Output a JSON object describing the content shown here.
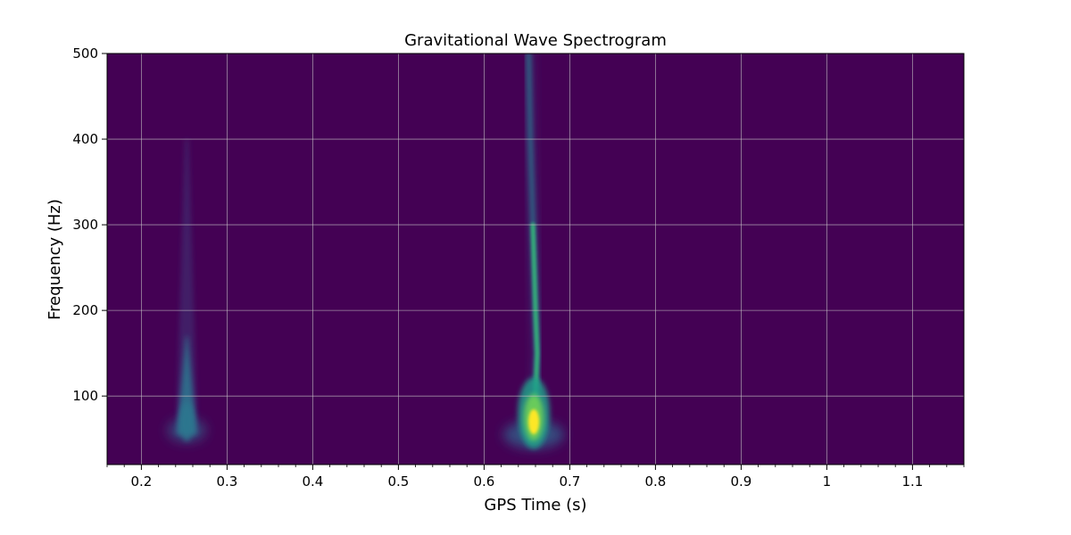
{
  "chart_data": {
    "type": "heatmap",
    "title": "Gravitational Wave Spectrogram",
    "xlabel": "GPS Time (s)",
    "ylabel": "Frequency (Hz)",
    "xlim": [
      0.16,
      1.16
    ],
    "ylim": [
      20,
      500
    ],
    "xticks": [
      0.2,
      0.3,
      0.4,
      0.5,
      0.6,
      0.7,
      0.8,
      0.9,
      1.0,
      1.1
    ],
    "xtick_labels": [
      "0.2",
      "0.3",
      "0.4",
      "0.5",
      "0.6",
      "0.7",
      "0.8",
      "0.9",
      "1",
      "1.1"
    ],
    "yticks": [
      100,
      200,
      300,
      400,
      500
    ],
    "ytick_labels": [
      "100",
      "200",
      "300",
      "400",
      "500"
    ],
    "grid": true,
    "colormap": "viridis",
    "background_color": "#440154",
    "features": [
      {
        "name": "chirp",
        "peak_time": 0.658,
        "peak_freq": 70,
        "peak_intensity": 1.0,
        "track": [
          [
            0.652,
            500
          ],
          [
            0.654,
            400
          ],
          [
            0.657,
            300
          ],
          [
            0.66,
            200
          ],
          [
            0.662,
            150
          ],
          [
            0.66,
            100
          ],
          [
            0.658,
            70
          ],
          [
            0.655,
            50
          ]
        ]
      },
      {
        "name": "glitch",
        "peak_time": 0.253,
        "peak_freq": 70,
        "peak_intensity": 0.35,
        "track": [
          [
            0.253,
            170
          ],
          [
            0.253,
            100
          ],
          [
            0.253,
            50
          ]
        ]
      }
    ]
  }
}
